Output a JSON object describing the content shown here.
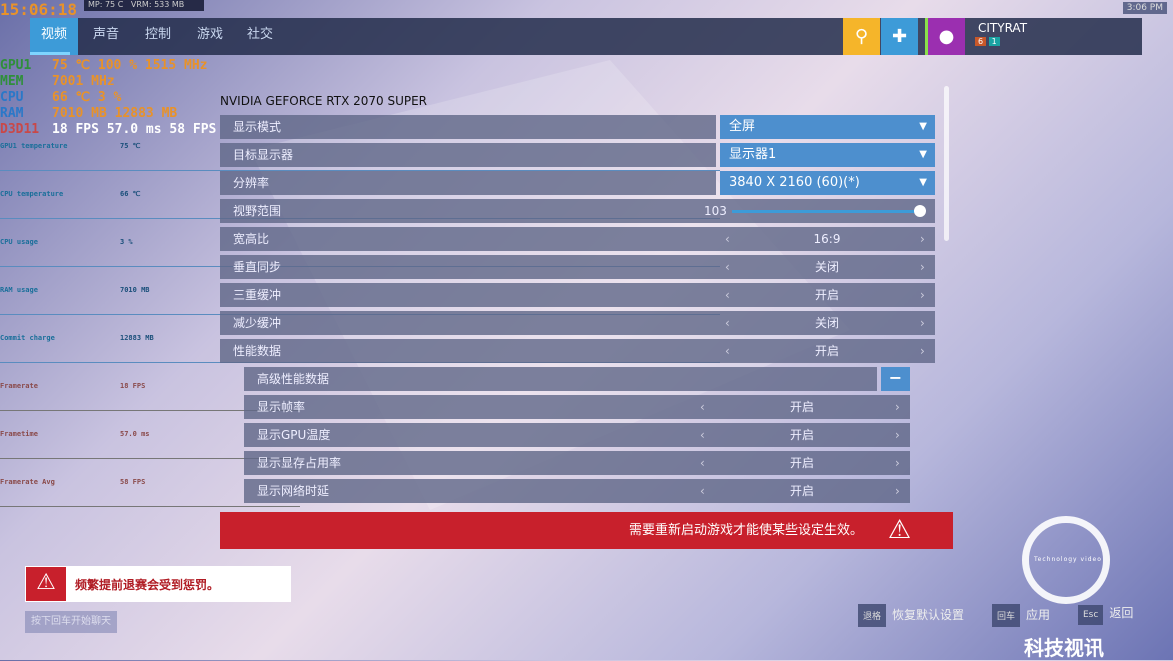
{
  "osd": {
    "top": "MP: 75 C   VRM: 533 MB",
    "time": "15:06:18",
    "rows": [
      {
        "k": "GPU1",
        "v": "75 ℃   100 %   1515 MHz"
      },
      {
        "k": "MEM",
        "v": "7001 MHz"
      },
      {
        "k": "CPU",
        "v": "66 ℃        3 %"
      },
      {
        "k": "RAM",
        "v": "7010 MB  12883 MB"
      },
      {
        "k": "D3D11",
        "v": "18 FPS   57.0 ms      58 FPS"
      }
    ],
    "graphs": [
      "GPU1 temperature",
      "CPU temperature",
      "CPU usage",
      "RAM usage",
      "Commit charge",
      "Framerate",
      "Frametime",
      "Framerate Avg"
    ],
    "graph_values": [
      "75 ℃",
      "66 ℃",
      "3 %",
      "7010 MB",
      "12883 MB",
      "18 FPS",
      "57.0 ms",
      "58 FPS"
    ]
  },
  "tabs": [
    {
      "label": "视频"
    },
    {
      "label": "声音"
    },
    {
      "label": "控制"
    },
    {
      "label": "游戏"
    },
    {
      "label": "社交"
    }
  ],
  "clock": "3:06 PM",
  "player": {
    "name": "CITYRAT",
    "level": "6",
    "endorse": "1"
  },
  "gpu": "NVIDIA GEFORCE RTX 2070 SUPER",
  "dropdowns": [
    {
      "label": "显示模式",
      "value": "全屏"
    },
    {
      "label": "目标显示器",
      "value": "显示器1"
    },
    {
      "label": "分辨率",
      "value": "3840 X 2160 (60)(*)"
    }
  ],
  "fov": {
    "label": "视野范围",
    "value": "103",
    "fraction": 1.0
  },
  "options": [
    {
      "label": "宽高比",
      "value": "16:9"
    },
    {
      "label": "垂直同步",
      "value": "关闭"
    },
    {
      "label": "三重缓冲",
      "value": "开启"
    },
    {
      "label": "减少缓冲",
      "value": "关闭"
    },
    {
      "label": "性能数据",
      "value": "开启"
    }
  ],
  "advanced": {
    "label": "高级性能数据",
    "toggle": "−"
  },
  "sub_options": [
    {
      "label": "显示帧率",
      "value": "开启"
    },
    {
      "label": "显示GPU温度",
      "value": "开启"
    },
    {
      "label": "显示显存占用率",
      "value": "开启"
    },
    {
      "label": "显示网络时延",
      "value": "开启"
    }
  ],
  "warning": "需要重新启动游戏才能使某些设定生效。",
  "toast": "频繁提前退赛会受到惩罚。",
  "chat_hint": "按下回车开始聊天",
  "footer": [
    {
      "key": "退格",
      "label": "恢复默认设置"
    },
    {
      "key": "回车",
      "label": "应用"
    },
    {
      "key": "Esc",
      "label": "返回"
    }
  ],
  "watermark": {
    "title": "科技视讯",
    "sub": "Technology video"
  }
}
